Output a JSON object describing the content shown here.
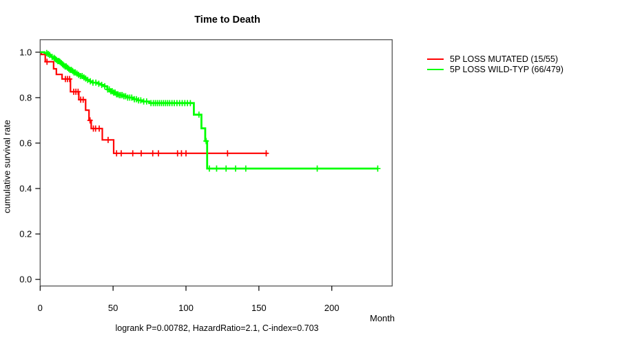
{
  "chart_data": {
    "type": "line",
    "subtype": "kaplan-meier-step",
    "title": "Time to Death",
    "ylabel": "cumulative survival rate",
    "xlabel": "Month",
    "footer": "logrank P=0.00782, HazardRatio=2.1, C-index=0.703",
    "xlim": [
      0,
      241.4
    ],
    "ylim": [
      -0.029,
      1.055
    ],
    "xtick_values": [
      0,
      50,
      100,
      150,
      200
    ],
    "xtick_labels": [
      "0",
      "50",
      "100",
      "150",
      "200"
    ],
    "ytick_values": [
      0.0,
      0.2,
      0.4,
      0.6,
      0.8,
      1.0
    ],
    "ytick_labels": [
      "0.0",
      "0.2",
      "0.4",
      "0.6",
      "0.8",
      "1.0"
    ],
    "grid": false,
    "legend_position": "right-outside",
    "axis_color": "#000000",
    "box_color": "#555555",
    "series": [
      {
        "name": "5P LOSS MUTATED (15/55)",
        "color": "#ff0000",
        "line_width": 2.2,
        "steps": [
          [
            0,
            1.0
          ],
          [
            0.8,
            0.99
          ],
          [
            3.5,
            0.958
          ],
          [
            9.2,
            0.927
          ],
          [
            11.1,
            0.902
          ],
          [
            15,
            0.882
          ],
          [
            20.8,
            0.826
          ],
          [
            26.5,
            0.791
          ],
          [
            31.2,
            0.745
          ],
          [
            33.5,
            0.7
          ],
          [
            35,
            0.664
          ],
          [
            42.6,
            0.614
          ],
          [
            50.4,
            0.555
          ]
        ],
        "end_month": 156,
        "censor_months": [
          4.7,
          17.3,
          18.7,
          20.2,
          23,
          24.5,
          26,
          27.8,
          29.5,
          34.2,
          36.5,
          38,
          40.5,
          46.6,
          52.4,
          55.6,
          63.5,
          69.3,
          77.2,
          81.1,
          94.2,
          96.9,
          100,
          128.5,
          155
        ]
      },
      {
        "name": "5P LOSS WILD-TYP (66/479)",
        "color": "#00ff00",
        "line_width": 2.8,
        "steps": [
          [
            0,
            1.0
          ],
          [
            3,
            0.996
          ],
          [
            5,
            0.992
          ],
          [
            6,
            0.988
          ],
          [
            7,
            0.983
          ],
          [
            8,
            0.979
          ],
          [
            9,
            0.975
          ],
          [
            10,
            0.97
          ],
          [
            11,
            0.966
          ],
          [
            12,
            0.961
          ],
          [
            13,
            0.957
          ],
          [
            14,
            0.952
          ],
          [
            15,
            0.947
          ],
          [
            16,
            0.942
          ],
          [
            17,
            0.937
          ],
          [
            18,
            0.932
          ],
          [
            19,
            0.927
          ],
          [
            20,
            0.922
          ],
          [
            21.5,
            0.917
          ],
          [
            23,
            0.911
          ],
          [
            24.5,
            0.906
          ],
          [
            26,
            0.9
          ],
          [
            27.5,
            0.895
          ],
          [
            29,
            0.889
          ],
          [
            30.5,
            0.884
          ],
          [
            32,
            0.878
          ],
          [
            34,
            0.872
          ],
          [
            36,
            0.866
          ],
          [
            38,
            0.866
          ],
          [
            40,
            0.861
          ],
          [
            42,
            0.856
          ],
          [
            44,
            0.85
          ],
          [
            46,
            0.836
          ],
          [
            48,
            0.828
          ],
          [
            50,
            0.822
          ],
          [
            52,
            0.815
          ],
          [
            54,
            0.811
          ],
          [
            57,
            0.806
          ],
          [
            60,
            0.8
          ],
          [
            63.8,
            0.793
          ],
          [
            67,
            0.788
          ],
          [
            70,
            0.783
          ],
          [
            74.8,
            0.776
          ],
          [
            105.4,
            0.725
          ],
          [
            110.6,
            0.665
          ],
          [
            113.2,
            0.609
          ],
          [
            114.5,
            0.488
          ]
        ],
        "end_month": 231.5,
        "censor_months": [
          4.5,
          5.5,
          6.5,
          8.2,
          9.6,
          10.4,
          11.2,
          12.1,
          12.9,
          13.7,
          14.6,
          15.4,
          16.2,
          17.1,
          17.9,
          18.8,
          19.6,
          20.5,
          21.4,
          22.3,
          23.2,
          24.1,
          25.2,
          26.4,
          27.6,
          28.8,
          30,
          31.2,
          32.6,
          34.4,
          36.2,
          38.2,
          40.2,
          42.2,
          44.3,
          46.3,
          47.4,
          48.4,
          49.4,
          50.4,
          51.4,
          52.4,
          53.3,
          54.3,
          55.3,
          56.3,
          57.4,
          58.6,
          60,
          61.4,
          62.8,
          64.6,
          66,
          67.5,
          69,
          71,
          73,
          76,
          77.6,
          79,
          80.4,
          81.8,
          83.2,
          84.6,
          86,
          87.4,
          88.8,
          90.4,
          92,
          93.8,
          95.6,
          97.4,
          99.2,
          101,
          103,
          108.9,
          113.8,
          116,
          121,
          127.5,
          134,
          141,
          190,
          231.5
        ]
      }
    ]
  }
}
